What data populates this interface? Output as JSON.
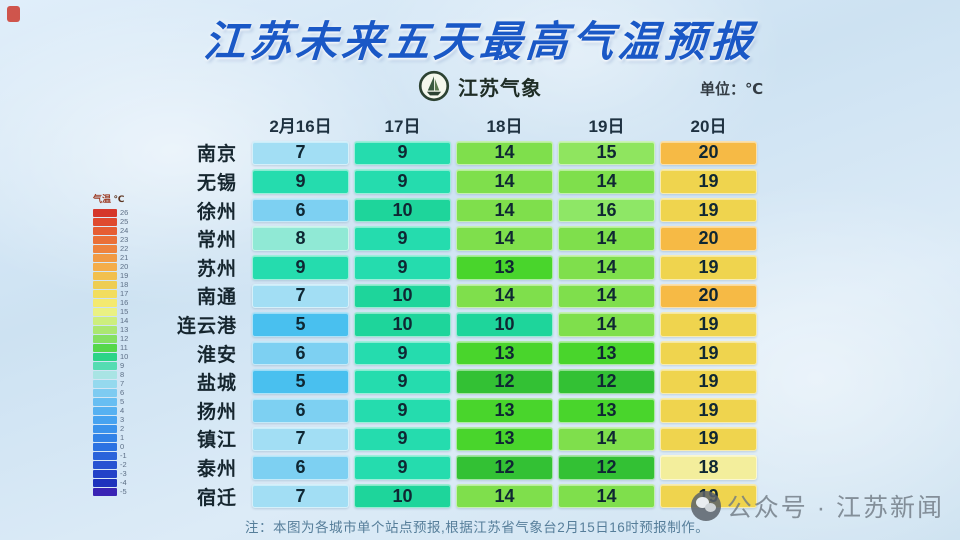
{
  "title": "江苏未来五天最高气温预报",
  "title_color": "#1a58c6",
  "logo_text": "江苏气象",
  "unit_label": "单位：℃",
  "note": "注：本图为各城市单个站点预报,根据江苏省气象台2月15日16时预报制作。",
  "watermark": "公众号 · 江苏新闻",
  "chart_data": {
    "type": "heatmap",
    "title": "江苏未来五天最高气温预报",
    "unit": "℃",
    "columns": [
      "2月16日",
      "17日",
      "18日",
      "19日",
      "20日"
    ],
    "rows": [
      "南京",
      "无锡",
      "徐州",
      "常州",
      "苏州",
      "南通",
      "连云港",
      "淮安",
      "盐城",
      "扬州",
      "镇江",
      "泰州",
      "宿迁"
    ],
    "values": [
      [
        7,
        9,
        14,
        15,
        20
      ],
      [
        9,
        9,
        14,
        14,
        19
      ],
      [
        6,
        10,
        14,
        16,
        19
      ],
      [
        8,
        9,
        14,
        14,
        20
      ],
      [
        9,
        9,
        13,
        14,
        19
      ],
      [
        7,
        10,
        14,
        14,
        20
      ],
      [
        5,
        10,
        10,
        14,
        19
      ],
      [
        6,
        9,
        13,
        13,
        19
      ],
      [
        5,
        9,
        12,
        12,
        19
      ],
      [
        6,
        9,
        13,
        13,
        19
      ],
      [
        7,
        9,
        13,
        14,
        19
      ],
      [
        6,
        9,
        12,
        12,
        18
      ],
      [
        7,
        10,
        14,
        14,
        19
      ]
    ],
    "colorbar_range": [
      -5,
      26
    ],
    "legend_position": "left"
  },
  "temp_colors": {
    "5": "#49c0ef",
    "6": "#7dd0f2",
    "7": "#a2def4",
    "8": "#90e9d5",
    "9": "#25dcae",
    "10": "#1ed59b",
    "12": "#33c134",
    "13": "#49d52c",
    "14": "#7fdf4c",
    "15": "#8fe55f",
    "16": "#8ee766",
    "18": "#f3ee9c",
    "19": "#efd44e",
    "20": "#f6ba45"
  },
  "legend": {
    "title": "气温",
    "unit": "℃",
    "stops": [
      {
        "v": "26",
        "c": "#d5372b"
      },
      {
        "v": "25",
        "c": "#df4a2f"
      },
      {
        "v": "24",
        "c": "#e65d33"
      },
      {
        "v": "23",
        "c": "#ea7038"
      },
      {
        "v": "22",
        "c": "#ee833e"
      },
      {
        "v": "21",
        "c": "#f19a44"
      },
      {
        "v": "20",
        "c": "#f4ad4a"
      },
      {
        "v": "19",
        "c": "#f2c04e"
      },
      {
        "v": "18",
        "c": "#eecd53"
      },
      {
        "v": "17",
        "c": "#f2dd5e"
      },
      {
        "v": "16",
        "c": "#f4e96f"
      },
      {
        "v": "15",
        "c": "#eaf183"
      },
      {
        "v": "14",
        "c": "#cdee7d"
      },
      {
        "v": "13",
        "c": "#abe771"
      },
      {
        "v": "12",
        "c": "#85e062"
      },
      {
        "v": "11",
        "c": "#55d74b"
      },
      {
        "v": "10",
        "c": "#2bd487"
      },
      {
        "v": "9",
        "c": "#55dcb2"
      },
      {
        "v": "8",
        "c": "#a9e4e4"
      },
      {
        "v": "7",
        "c": "#95d9ee"
      },
      {
        "v": "6",
        "c": "#7ecbf1"
      },
      {
        "v": "5",
        "c": "#67bef2"
      },
      {
        "v": "4",
        "c": "#56b1f1"
      },
      {
        "v": "3",
        "c": "#47a3f0"
      },
      {
        "v": "2",
        "c": "#3b93ec"
      },
      {
        "v": "1",
        "c": "#3182e7"
      },
      {
        "v": "0",
        "c": "#2b72e2"
      },
      {
        "v": "-1",
        "c": "#2a63da"
      },
      {
        "v": "-2",
        "c": "#2753d2"
      },
      {
        "v": "-3",
        "c": "#2342c8"
      },
      {
        "v": "-4",
        "c": "#1e32bd"
      },
      {
        "v": "-5",
        "c": "#3a23b4"
      }
    ]
  }
}
